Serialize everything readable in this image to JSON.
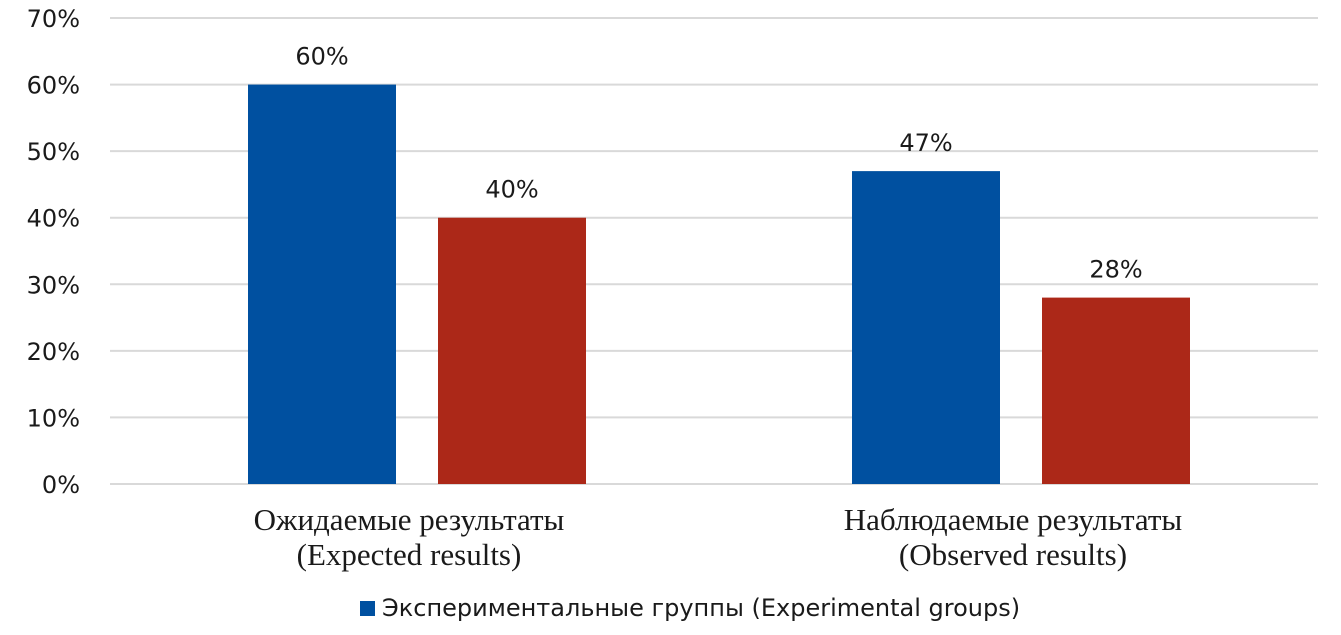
{
  "chart_data": {
    "type": "bar",
    "categories": [
      [
        "Ожидаемые результаты",
        "(Expected results)"
      ],
      [
        "Наблюдаемые результаты",
        "(Observed results)"
      ]
    ],
    "series": [
      {
        "name": "Экспериментальные группы (Experimental groups)",
        "color": "#0050a0",
        "values": [
          60,
          47
        ],
        "labels": [
          "60%",
          "47%"
        ]
      },
      {
        "name": "",
        "color": "#ac2818",
        "values": [
          40,
          28
        ],
        "labels": [
          "40%",
          "28%"
        ]
      }
    ],
    "yticks": [
      "0%",
      "10%",
      "20%",
      "30%",
      "40%",
      "50%",
      "60%",
      "70%"
    ],
    "ylim": [
      0,
      70
    ],
    "grid": true,
    "legend_position": "bottom",
    "title": "",
    "xlabel": "",
    "ylabel": ""
  },
  "legend": {
    "label": "Экспериментальные группы (Experimental groups)",
    "color": "#0050a0"
  }
}
